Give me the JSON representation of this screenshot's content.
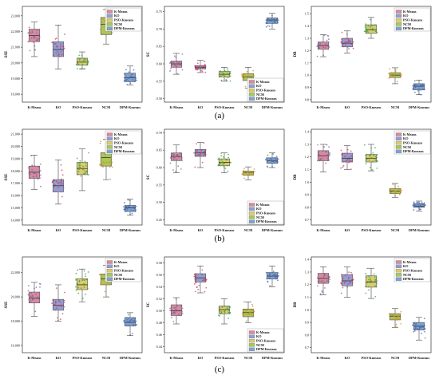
{
  "figure": {
    "row_labels": [
      "(a)",
      "(b)",
      "(c)"
    ]
  },
  "chart_data": [
    {
      "type": "box",
      "row": 0,
      "col": 0,
      "ylabel": "SSE",
      "yticks": [
        "18,000",
        "19,000",
        "20,000",
        "21,000",
        "22,000",
        "23,000"
      ],
      "ylim": [
        17500,
        23600
      ],
      "grid": false,
      "categories": [
        "K-Means",
        "KO",
        "PSO-Kmeans",
        "NCM",
        "DPM-Kmeans"
      ],
      "boxes": [
        {
          "min": 20400,
          "q1": 21350,
          "median": 21750,
          "q3": 22150,
          "max": 22600
        },
        {
          "min": 19600,
          "q1": 20400,
          "median": 20850,
          "q3": 21350,
          "max": 22400
        },
        {
          "min": 19600,
          "q1": 19850,
          "median": 20050,
          "q3": 20300,
          "max": 20700
        },
        {
          "min": 21200,
          "q1": 21800,
          "median": 22450,
          "q3": 22900,
          "max": 23400
        },
        {
          "min": 18600,
          "q1": 18800,
          "median": 19050,
          "q3": 19350,
          "max": 19800
        }
      ],
      "legend": [
        "K-Means",
        "KO",
        "PSO-Kmeans",
        "NCM",
        "DPM-Kmeans"
      ],
      "legend_position": "top-right"
    },
    {
      "type": "box",
      "row": 0,
      "col": 1,
      "ylabel": "SC",
      "yticks": [
        "0.50",
        "0.55",
        "0.60",
        "0.65",
        "0.70",
        "0.75"
      ],
      "ylim": [
        0.49,
        0.765
      ],
      "grid": false,
      "categories": [
        "K-Means",
        "KO",
        "PSO-Kmeans",
        "NCM",
        "DPM-Kmeans"
      ],
      "boxes": [
        {
          "min": 0.57,
          "q1": 0.59,
          "median": 0.6,
          "q3": 0.608,
          "max": 0.63
        },
        {
          "min": 0.575,
          "q1": 0.585,
          "median": 0.59,
          "q3": 0.595,
          "max": 0.61
        },
        {
          "min": 0.55,
          "q1": 0.562,
          "median": 0.57,
          "q3": 0.578,
          "max": 0.59
        },
        {
          "min": 0.53,
          "q1": 0.552,
          "median": 0.562,
          "q3": 0.572,
          "max": 0.59
        },
        {
          "min": 0.7,
          "q1": 0.716,
          "median": 0.726,
          "q3": 0.732,
          "max": 0.745
        }
      ],
      "legend": [
        "K-Means",
        "KO",
        "PSO-Kmeans",
        "NCM",
        "DPM-Kmeans"
      ],
      "legend_position": "bottom-right"
    },
    {
      "type": "box",
      "row": 0,
      "col": 2,
      "ylabel": "DB",
      "yticks": [
        "0.8",
        "0.9",
        "1.0",
        "1.1",
        "1.2",
        "1.3",
        "1.4",
        "1.5"
      ],
      "ylim": [
        0.78,
        1.56
      ],
      "grid": false,
      "categories": [
        "K-Means",
        "KO",
        "PSO-Kmeans",
        "NCM",
        "DPM-Kmeans"
      ],
      "boxes": [
        {
          "min": 1.15,
          "q1": 1.21,
          "median": 1.24,
          "q3": 1.27,
          "max": 1.33
        },
        {
          "min": 1.18,
          "q1": 1.23,
          "median": 1.26,
          "q3": 1.3,
          "max": 1.36
        },
        {
          "min": 1.3,
          "q1": 1.34,
          "median": 1.37,
          "q3": 1.41,
          "max": 1.47
        },
        {
          "min": 0.93,
          "q1": 0.98,
          "median": 1.0,
          "q3": 1.02,
          "max": 1.06
        },
        {
          "min": 0.84,
          "q1": 0.88,
          "median": 0.91,
          "q3": 0.93,
          "max": 0.96
        }
      ],
      "legend": [
        "K-Means",
        "KO",
        "PSO-Kmeans",
        "NCM",
        "DPM-Kmeans"
      ],
      "legend_position": "top-right"
    },
    {
      "type": "box",
      "row": 1,
      "col": 0,
      "ylabel": "SSE",
      "yticks": [
        "14,000",
        "15,000",
        "16,000",
        "17,000",
        "18,000",
        "19,000",
        "20,000",
        "21,000"
      ],
      "ylim": [
        13600,
        21400
      ],
      "grid": false,
      "categories": [
        "K-Means",
        "KO",
        "PSO-Kmeans",
        "NCM",
        "DPM-Kmeans"
      ],
      "boxes": [
        {
          "min": 16500,
          "q1": 17400,
          "median": 17900,
          "q3": 18400,
          "max": 19300
        },
        {
          "min": 15300,
          "q1": 16300,
          "median": 16800,
          "q3": 17300,
          "max": 18900
        },
        {
          "min": 16400,
          "q1": 17700,
          "median": 18200,
          "q3": 18700,
          "max": 19800
        },
        {
          "min": 17300,
          "q1": 18400,
          "median": 19100,
          "q3": 19500,
          "max": 20600
        },
        {
          "min": 14400,
          "q1": 14700,
          "median": 15000,
          "q3": 15200,
          "max": 15700
        }
      ],
      "legend": [
        "K-Means",
        "KO",
        "PSO-Kmeans",
        "NCM",
        "DPM-Kmeans"
      ],
      "legend_position": "top-right"
    },
    {
      "type": "box",
      "row": 1,
      "col": 1,
      "ylabel": "SC",
      "yticks": [
        "0.45",
        "0.50",
        "0.55",
        "0.60",
        "0.65",
        "0.70"
      ],
      "ylim": [
        0.435,
        0.71
      ],
      "grid": false,
      "categories": [
        "K-Means",
        "KO",
        "PSO-Kmeans",
        "NCM",
        "DPM-Kmeans"
      ],
      "boxes": [
        {
          "min": 0.585,
          "q1": 0.62,
          "median": 0.632,
          "q3": 0.642,
          "max": 0.665
        },
        {
          "min": 0.6,
          "q1": 0.632,
          "median": 0.642,
          "q3": 0.652,
          "max": 0.672
        },
        {
          "min": 0.585,
          "q1": 0.605,
          "median": 0.615,
          "q3": 0.625,
          "max": 0.642
        },
        {
          "min": 0.565,
          "q1": 0.578,
          "median": 0.585,
          "q3": 0.59,
          "max": 0.602
        },
        {
          "min": 0.6,
          "q1": 0.612,
          "median": 0.62,
          "q3": 0.628,
          "max": 0.642
        }
      ],
      "legend": [
        "K-Means",
        "KO",
        "PSO-Kmeans",
        "NCM",
        "DPM-Kmeans"
      ],
      "legend_position": "bottom-right"
    },
    {
      "type": "box",
      "row": 1,
      "col": 2,
      "ylabel": "DB",
      "yticks": [
        "0.7",
        "0.8",
        "0.9",
        "1.0",
        "1.1",
        "1.2",
        "1.3",
        "1.4"
      ],
      "ylim": [
        0.66,
        1.42
      ],
      "grid": false,
      "categories": [
        "K-Means",
        "KO",
        "PSO-Kmeans",
        "NCM",
        "DPM-Kmeans"
      ],
      "boxes": [
        {
          "min": 1.08,
          "q1": 1.17,
          "median": 1.21,
          "q3": 1.25,
          "max": 1.3
        },
        {
          "min": 1.1,
          "q1": 1.16,
          "median": 1.19,
          "q3": 1.23,
          "max": 1.29
        },
        {
          "min": 1.09,
          "q1": 1.16,
          "median": 1.19,
          "q3": 1.22,
          "max": 1.3
        },
        {
          "min": 0.88,
          "q1": 0.91,
          "median": 0.93,
          "q3": 0.95,
          "max": 0.99
        },
        {
          "min": 0.77,
          "q1": 0.8,
          "median": 0.81,
          "q3": 0.83,
          "max": 0.85
        }
      ],
      "legend": [
        "K-Means",
        "KO",
        "PSO-Kmeans",
        "NCM",
        "DPM-Kmeans"
      ],
      "legend_position": "top-right"
    },
    {
      "type": "box",
      "row": 2,
      "col": 0,
      "ylabel": "SSE",
      "yticks": [
        "16,000",
        "18,000",
        "20,000",
        "22,000"
      ],
      "ylim": [
        15400,
        23300
      ],
      "grid": false,
      "categories": [
        "K-Means",
        "KO",
        "PSO-Kmeans",
        "NCM",
        "DPM-Kmeans"
      ],
      "boxes": [
        {
          "min": 18400,
          "q1": 19500,
          "median": 19900,
          "q3": 20400,
          "max": 21200
        },
        {
          "min": 18000,
          "q1": 18900,
          "median": 19300,
          "q3": 19800,
          "max": 21000
        },
        {
          "min": 19600,
          "q1": 20600,
          "median": 21000,
          "q3": 21500,
          "max": 22300
        },
        {
          "min": 20000,
          "q1": 21000,
          "median": 21500,
          "q3": 21900,
          "max": 22600
        },
        {
          "min": 16800,
          "q1": 17600,
          "median": 17900,
          "q3": 18300,
          "max": 18700
        }
      ],
      "legend": [
        "K-Means",
        "KO",
        "PSO-Kmeans",
        "NCM",
        "DPM-Kmeans"
      ],
      "legend_position": "top-right"
    },
    {
      "type": "box",
      "row": 2,
      "col": 1,
      "ylabel": "SC",
      "yticks": [
        "0.44",
        "0.46",
        "0.48",
        "0.50",
        "0.52",
        "0.54",
        "0.56",
        "0.58"
      ],
      "ylim": [
        0.43,
        0.59
      ],
      "grid": false,
      "categories": [
        "K-Means",
        "KO",
        "PSO-Kmeans",
        "NCM",
        "DPM-Kmeans"
      ],
      "boxes": [
        {
          "min": 0.478,
          "q1": 0.492,
          "median": 0.5,
          "q3": 0.51,
          "max": 0.522
        },
        {
          "min": 0.53,
          "q1": 0.548,
          "median": 0.555,
          "q3": 0.562,
          "max": 0.575
        },
        {
          "min": 0.478,
          "q1": 0.495,
          "median": 0.502,
          "q3": 0.508,
          "max": 0.52
        },
        {
          "min": 0.48,
          "q1": 0.49,
          "median": 0.497,
          "q3": 0.503,
          "max": 0.515
        },
        {
          "min": 0.54,
          "q1": 0.553,
          "median": 0.558,
          "q3": 0.564,
          "max": 0.575
        }
      ],
      "legend": [
        "K-Means",
        "KO",
        "PSO-Kmeans",
        "NCM",
        "DPM-Kmeans"
      ],
      "legend_position": "bottom-right"
    },
    {
      "type": "box",
      "row": 2,
      "col": 2,
      "ylabel": "DB",
      "yticks": [
        "0.7",
        "0.8",
        "0.9",
        "1.0",
        "1.1",
        "1.2",
        "1.3",
        "1.4"
      ],
      "ylim": [
        0.66,
        1.42
      ],
      "grid": false,
      "categories": [
        "K-Means",
        "KO",
        "PSO-Kmeans",
        "NCM",
        "DPM-Kmeans"
      ],
      "boxes": [
        {
          "min": 1.12,
          "q1": 1.21,
          "median": 1.25,
          "q3": 1.29,
          "max": 1.34
        },
        {
          "min": 1.1,
          "q1": 1.19,
          "median": 1.23,
          "q3": 1.28,
          "max": 1.34
        },
        {
          "min": 1.09,
          "q1": 1.18,
          "median": 1.22,
          "q3": 1.27,
          "max": 1.33
        },
        {
          "min": 0.86,
          "q1": 0.92,
          "median": 0.95,
          "q3": 0.97,
          "max": 1.01
        },
        {
          "min": 0.76,
          "q1": 0.84,
          "median": 0.87,
          "q3": 0.9,
          "max": 0.94
        }
      ],
      "legend": [
        "K-Means",
        "KO",
        "PSO-Kmeans",
        "NCM",
        "DPM-Kmeans"
      ],
      "legend_position": "top-right"
    }
  ],
  "colors": {
    "K-Means": "#d98aa0",
    "KO": "#8f9fd4",
    "PSO-Kmeans": "#dccb6c",
    "NCM": "#a8c85a",
    "DPM-Kmeans": "#7ea2d0"
  },
  "point_colors": {
    "K-Means": "#7a6a9a",
    "KO": "#c8405a",
    "PSO-Kmeans": "#3aa04a",
    "NCM": "#d09030",
    "DPM-Kmeans": "#4a6ab0"
  }
}
